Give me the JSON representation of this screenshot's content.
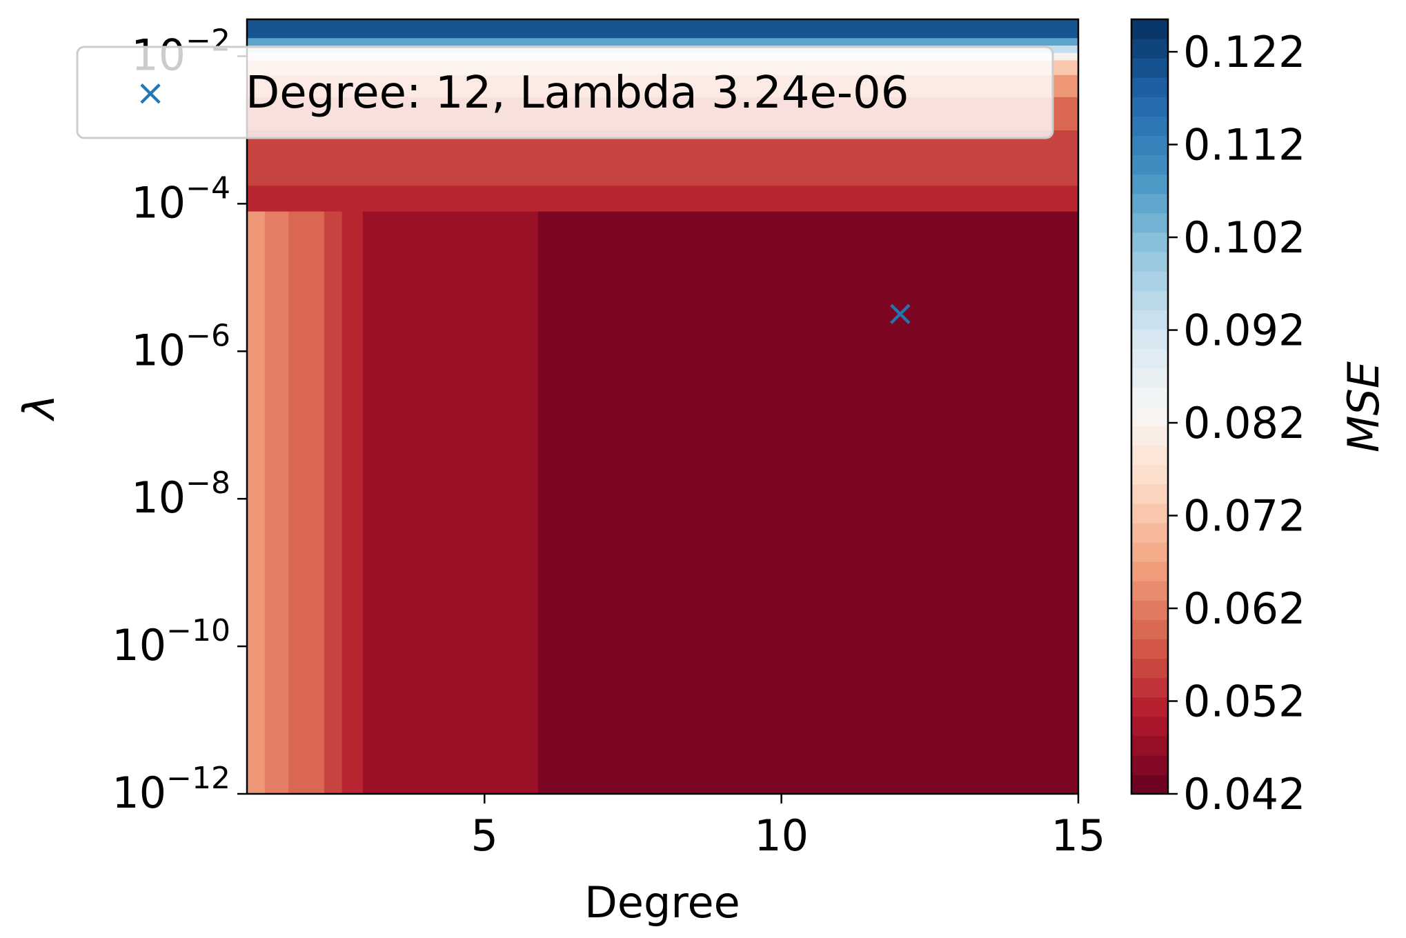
{
  "chart_data": {
    "type": "heatmap",
    "title": "",
    "xlabel": "Degree",
    "ylabel": "λ",
    "colorbar_label": "MSE",
    "xlim": [
      1,
      15
    ],
    "xticks": [
      5,
      10,
      15
    ],
    "ylim_log10": [
      -12,
      -1.5
    ],
    "yticks": [
      {
        "exp": -12,
        "base": "10",
        "sup": "−12"
      },
      {
        "exp": -10,
        "base": "10",
        "sup": "−10"
      },
      {
        "exp": -8,
        "base": "10",
        "sup": "−8"
      },
      {
        "exp": -6,
        "base": "10",
        "sup": "−6"
      },
      {
        "exp": -4,
        "base": "10",
        "sup": "−4"
      },
      {
        "exp": -2,
        "base": "10",
        "sup": "−2"
      }
    ],
    "colorbar_range": [
      0.042,
      0.1255
    ],
    "colorbar_ticks": [
      "0.042",
      "0.052",
      "0.062",
      "0.072",
      "0.082",
      "0.092",
      "0.102",
      "0.112",
      "0.122"
    ],
    "colormap": [
      "#67001f",
      "#b2182b",
      "#d6604d",
      "#f4a582",
      "#fddbc7",
      "#f7f7f7",
      "#d1e5f0",
      "#92c5de",
      "#4393c3",
      "#2166ac",
      "#053061"
    ],
    "mse_by_degree_band": [
      {
        "x_from": 1,
        "x_to": 1.3,
        "mse": 0.0655
      },
      {
        "x_from": 1.3,
        "x_to": 1.7,
        "mse": 0.0625
      },
      {
        "x_from": 1.7,
        "x_to": 2.3,
        "mse": 0.0595
      },
      {
        "x_from": 2.3,
        "x_to": 2.6,
        "mse": 0.0555
      },
      {
        "x_from": 2.6,
        "x_to": 2.95,
        "mse": 0.052
      },
      {
        "x_from": 2.95,
        "x_to": 5.9,
        "mse": 0.0478
      },
      {
        "x_from": 5.9,
        "x_to": 15,
        "mse": 0.0445
      }
    ],
    "mse_by_lambda_band": [
      {
        "log_from": -4.1,
        "log_to": -3.75,
        "mse": 0.052
      },
      {
        "log_from": -3.75,
        "log_to": -3.0,
        "mse": 0.0555
      },
      {
        "log_from": -3.0,
        "log_to": -2.55,
        "mse": 0.0595
      },
      {
        "log_from": -2.55,
        "log_to": -2.25,
        "mse": 0.0655
      },
      {
        "log_from": -2.25,
        "log_to": -2.05,
        "mse": 0.0725
      },
      {
        "log_from": -2.05,
        "log_to": -1.95,
        "mse": 0.082
      },
      {
        "log_from": -1.95,
        "log_to": -1.85,
        "mse": 0.094
      },
      {
        "log_from": -1.85,
        "log_to": -1.75,
        "mse": 0.106
      },
      {
        "log_from": -1.75,
        "log_to": -1.5,
        "mse": 0.12
      }
    ],
    "optimum": {
      "degree": 12,
      "log10_lambda": -5.49,
      "lambda": "3.24e-06"
    },
    "legend": {
      "position": "top-left",
      "label": "Degree: 12, Lambda 3.24e-06",
      "marker": "×"
    },
    "marker_color": "#1f77b4"
  }
}
